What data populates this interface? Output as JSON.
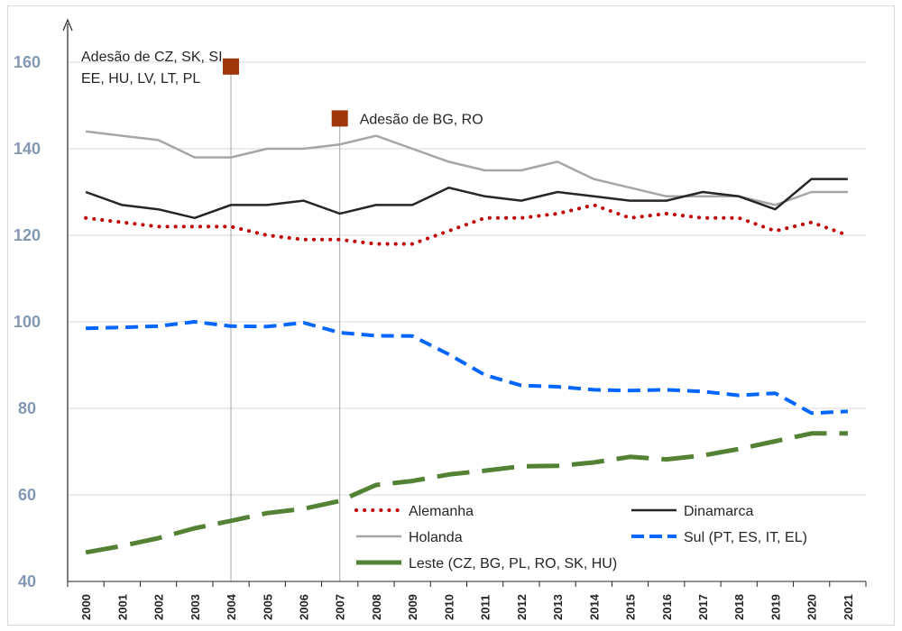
{
  "chart_data": {
    "type": "line",
    "title": "",
    "xlabel": "",
    "ylabel": "",
    "ylim": [
      40,
      170
    ],
    "yticks": [
      40,
      60,
      80,
      100,
      120,
      140,
      160
    ],
    "x": [
      "2000",
      "2001",
      "2002",
      "2003",
      "2004",
      "2005",
      "2006",
      "2007",
      "2008",
      "2009",
      "2010",
      "2011",
      "2012",
      "2013",
      "2014",
      "2015",
      "2016",
      "2017",
      "2018",
      "2019",
      "2020",
      "2021"
    ],
    "series": [
      {
        "name": "Holanda",
        "color": "#a6a6a6",
        "style": "solid",
        "values": [
          144,
          143,
          142,
          138,
          138,
          140,
          140,
          141,
          143,
          140,
          137,
          135,
          135,
          137,
          133,
          131,
          129,
          129,
          129,
          127,
          130,
          130
        ]
      },
      {
        "name": "Dinamarca",
        "color": "#262626",
        "style": "solid",
        "values": [
          130,
          127,
          126,
          124,
          127,
          127,
          128,
          125,
          127,
          127,
          131,
          129,
          128,
          130,
          129,
          128,
          128,
          130,
          129,
          126,
          133,
          133
        ]
      },
      {
        "name": "Alemanha",
        "color": "#c00000",
        "style": "dotted",
        "values": [
          124,
          123,
          122,
          122,
          122,
          120,
          119,
          119,
          118,
          118,
          121,
          124,
          124,
          125,
          127,
          124,
          125,
          124,
          124,
          121,
          123,
          120
        ]
      },
      {
        "name": "Sul (PT, ES, IT, EL)",
        "color": "#0066ff",
        "style": "dashed",
        "values": [
          98.5,
          98.7,
          99,
          100,
          99,
          98.9,
          99.8,
          97.5,
          96.8,
          96.7,
          92.5,
          87.7,
          85.3,
          85,
          84.3,
          84.1,
          84.3,
          83.9,
          83,
          83.5,
          78.9,
          79.3
        ]
      },
      {
        "name": "Leste (CZ, BG, PL, RO, SK, HU)",
        "color": "#548235",
        "style": "longdash",
        "values": [
          46.7,
          48.2,
          50,
          52.3,
          54,
          55.8,
          56.8,
          58.6,
          62.3,
          63.2,
          64.7,
          65.6,
          66.6,
          66.7,
          67.5,
          68.8,
          68.2,
          69.1,
          70.6,
          72.4,
          74.2,
          74.2
        ]
      }
    ],
    "events": [
      {
        "year": "2004",
        "label_lines": [
          "Adesão de CZ, SK, SI",
          "EE, HU, LV, LT, PL"
        ],
        "marker_value": 159,
        "color": "#a0360b"
      },
      {
        "year": "2007",
        "label_lines": [
          "Adesão de BG, RO"
        ],
        "marker_value": 147,
        "color": "#a0360b"
      }
    ],
    "legend": [
      {
        "name": "Alemanha",
        "column": 0,
        "row": 0
      },
      {
        "name": "Dinamarca",
        "column": 1,
        "row": 0
      },
      {
        "name": "Holanda",
        "column": 0,
        "row": 1
      },
      {
        "name": "Sul (PT, ES, IT, EL)",
        "column": 1,
        "row": 1
      },
      {
        "name": "Leste (CZ, BG, PL, RO, SK, HU)",
        "column": 0,
        "row": 2
      }
    ],
    "legend_placement": "bottom-inside",
    "grid": true
  }
}
